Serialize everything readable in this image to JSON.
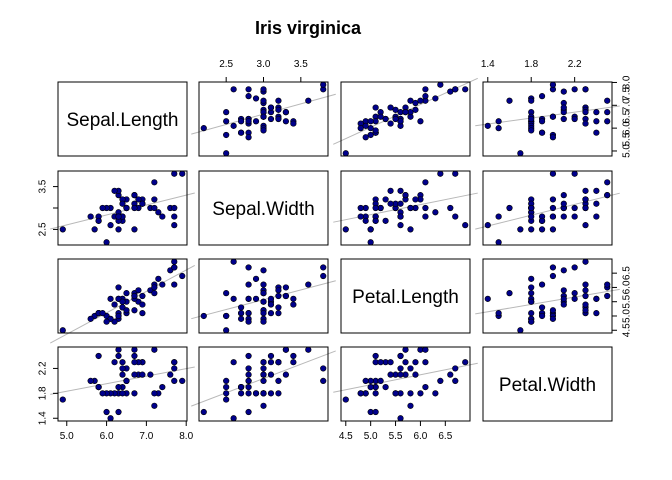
{
  "chart_data": {
    "type": "scatter",
    "title": "Iris virginica",
    "variables": [
      "Sepal.Length",
      "Sepal.Width",
      "Petal.Length",
      "Petal.Width"
    ],
    "ranges": {
      "Sepal.Length": [
        4.9,
        7.9
      ],
      "Sepal.Width": [
        2.2,
        3.8
      ],
      "Petal.Length": [
        4.5,
        6.9
      ],
      "Petal.Width": [
        1.4,
        2.5
      ]
    },
    "ticks": {
      "Sepal.Length": [
        5.0,
        6.0,
        7.0,
        8.0
      ],
      "Sepal.Width": [
        2.5,
        3.0,
        3.5
      ],
      "Petal.Length": [
        4.5,
        5.0,
        5.5,
        6.0,
        6.5
      ],
      "Petal.Width": [
        1.4,
        1.8,
        2.2
      ]
    },
    "tick_labels": {
      "top": {
        "Sepal.Width": [
          "2.5",
          "3.0",
          "3.5"
        ],
        "Petal.Width": [
          "1.4",
          "1.8",
          "2.2"
        ]
      },
      "bottom": {
        "Sepal.Length": [
          "5.0",
          "6.0",
          "7.0",
          "8.0"
        ],
        "Petal.Length": [
          "4.5",
          "5.0",
          "5.5",
          "6.0",
          "6.5"
        ]
      },
      "left": {
        "Sepal.Width": [
          "2.5",
          "3.5"
        ],
        "Petal.Width": [
          "1.4",
          "1.8",
          "2.2"
        ]
      },
      "right": {
        "Sepal.Length": [
          "5.0",
          "5.5",
          "6.0",
          "6.5",
          "7.0",
          "7.5",
          "8.0"
        ],
        "Petal.Length": [
          "4.5",
          "5.0",
          "5.5",
          "6.0",
          "6.5"
        ]
      }
    },
    "point_color": "#00008b",
    "regression_line_color": "#b8b8b8",
    "regression_lines": true,
    "grid": false,
    "points": [
      [
        6.3,
        3.3,
        6.0,
        2.5
      ],
      [
        5.8,
        2.7,
        5.1,
        1.9
      ],
      [
        7.1,
        3.0,
        5.9,
        2.1
      ],
      [
        6.3,
        2.9,
        5.6,
        1.8
      ],
      [
        6.5,
        3.0,
        5.8,
        2.2
      ],
      [
        7.6,
        3.0,
        6.6,
        2.1
      ],
      [
        4.9,
        2.5,
        4.5,
        1.7
      ],
      [
        7.3,
        2.9,
        6.3,
        1.8
      ],
      [
        6.7,
        2.5,
        5.8,
        1.8
      ],
      [
        7.2,
        3.6,
        6.1,
        2.5
      ],
      [
        6.5,
        3.2,
        5.1,
        2.0
      ],
      [
        6.4,
        2.7,
        5.3,
        1.9
      ],
      [
        6.8,
        3.0,
        5.5,
        2.1
      ],
      [
        5.7,
        2.5,
        5.0,
        2.0
      ],
      [
        5.8,
        2.8,
        5.1,
        2.4
      ],
      [
        6.4,
        3.2,
        5.3,
        2.3
      ],
      [
        6.5,
        3.0,
        5.5,
        1.8
      ],
      [
        7.7,
        3.8,
        6.7,
        2.2
      ],
      [
        7.7,
        2.6,
        6.9,
        2.3
      ],
      [
        6.0,
        2.2,
        5.0,
        1.5
      ],
      [
        6.9,
        3.2,
        5.7,
        2.3
      ],
      [
        5.6,
        2.8,
        4.9,
        2.0
      ],
      [
        7.7,
        2.8,
        6.7,
        2.0
      ],
      [
        6.3,
        2.7,
        4.9,
        1.8
      ],
      [
        6.7,
        3.3,
        5.7,
        2.1
      ],
      [
        7.2,
        3.2,
        6.0,
        1.8
      ],
      [
        6.2,
        2.8,
        4.8,
        1.8
      ],
      [
        6.1,
        3.0,
        4.9,
        1.8
      ],
      [
        6.4,
        2.8,
        5.6,
        2.1
      ],
      [
        7.2,
        3.0,
        5.8,
        1.6
      ],
      [
        7.4,
        2.8,
        6.1,
        1.9
      ],
      [
        7.9,
        3.8,
        6.4,
        2.0
      ],
      [
        6.4,
        2.8,
        5.6,
        2.2
      ],
      [
        6.3,
        2.8,
        5.1,
        1.5
      ],
      [
        6.1,
        2.6,
        5.6,
        1.4
      ],
      [
        7.7,
        3.0,
        6.1,
        2.3
      ],
      [
        6.3,
        3.4,
        5.6,
        2.4
      ],
      [
        6.4,
        3.1,
        5.5,
        1.8
      ],
      [
        6.0,
        3.0,
        4.8,
        1.8
      ],
      [
        6.9,
        3.1,
        5.4,
        2.1
      ],
      [
        6.7,
        3.1,
        5.6,
        2.4
      ],
      [
        6.9,
        3.1,
        5.1,
        2.3
      ],
      [
        5.8,
        2.7,
        5.1,
        1.9
      ],
      [
        6.8,
        3.2,
        5.9,
        2.3
      ],
      [
        6.7,
        3.3,
        5.7,
        2.5
      ],
      [
        6.7,
        3.0,
        5.2,
        2.3
      ],
      [
        6.3,
        2.5,
        5.0,
        1.9
      ],
      [
        6.5,
        3.0,
        5.2,
        2.0
      ],
      [
        6.2,
        3.4,
        5.4,
        2.3
      ],
      [
        5.9,
        3.0,
        5.1,
        1.8
      ]
    ]
  }
}
